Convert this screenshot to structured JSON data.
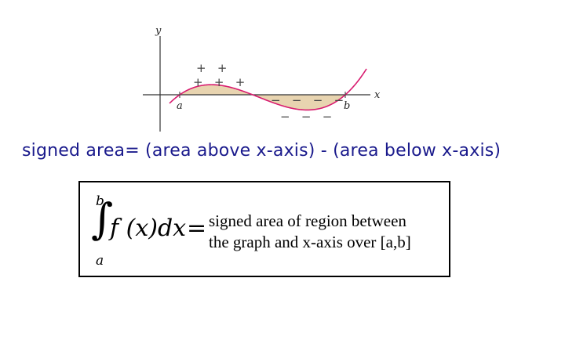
{
  "graph": {
    "y_axis_label": "y",
    "x_axis_label": "x",
    "point_a_label": "a",
    "point_b_label": "b",
    "area_fill": "#e8d4b0",
    "curve_color": "#d81b6f",
    "positive_signs": [
      {
        "row": 1,
        "text": "+   +"
      },
      {
        "row": 2,
        "text": "+   +   +"
      }
    ],
    "negative_signs": [
      {
        "row": 1,
        "text": "−   −   −   −"
      },
      {
        "row": 2,
        "text": "−   −   −"
      }
    ]
  },
  "caption": "signed area= (area above x-axis) - (area below x-axis)",
  "formula": {
    "upper_limit": "b",
    "lower_limit": "a",
    "integral_symbol": "∫",
    "integrand": "f (x)dx",
    "equals": "=",
    "description_line1": "signed area of region between",
    "description_line2": "the graph and x-axis over [a,b]"
  }
}
